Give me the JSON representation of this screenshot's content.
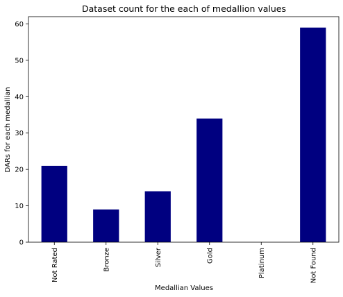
{
  "chart_data": {
    "type": "bar",
    "title": "Dataset count for the each of medallion values",
    "xlabel": "Medallian Values",
    "ylabel": "DARs for each medallian",
    "categories": [
      "Not Rated",
      "Bronze",
      "Silver",
      "Gold",
      "Platinum",
      "Not Found"
    ],
    "values": [
      21,
      9,
      14,
      34,
      0,
      59
    ],
    "ylim": [
      0,
      62
    ],
    "yticks": [
      0,
      10,
      20,
      30,
      40,
      50,
      60
    ],
    "grid": false,
    "legend": "none",
    "bar_color": "#000080"
  }
}
